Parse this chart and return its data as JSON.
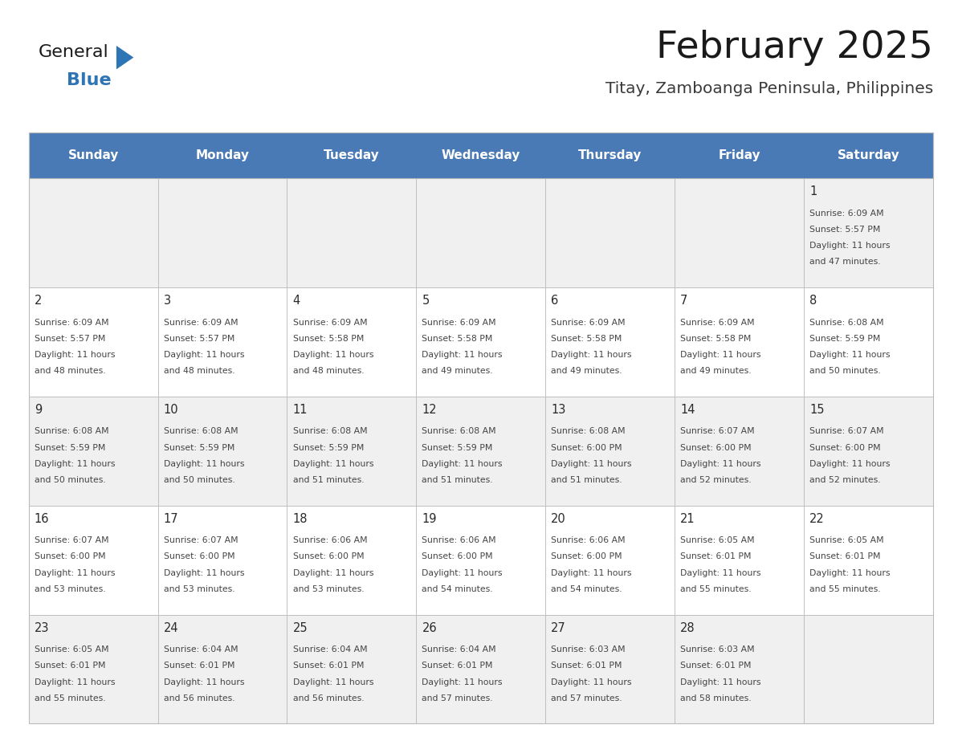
{
  "title": "February 2025",
  "subtitle": "Titay, Zamboanga Peninsula, Philippines",
  "header_bg_color": "#4a7ab5",
  "header_text_color": "#ffffff",
  "cell_bg_color_light": "#f0f0f0",
  "cell_bg_color_white": "#ffffff",
  "day_headers": [
    "Sunday",
    "Monday",
    "Tuesday",
    "Wednesday",
    "Thursday",
    "Friday",
    "Saturday"
  ],
  "days": [
    {
      "day": 1,
      "col": 6,
      "row": 0,
      "sunrise": "6:09 AM",
      "sunset": "5:57 PM",
      "daylight_h": "11 hours",
      "daylight_m": "47 minutes."
    },
    {
      "day": 2,
      "col": 0,
      "row": 1,
      "sunrise": "6:09 AM",
      "sunset": "5:57 PM",
      "daylight_h": "11 hours",
      "daylight_m": "48 minutes."
    },
    {
      "day": 3,
      "col": 1,
      "row": 1,
      "sunrise": "6:09 AM",
      "sunset": "5:57 PM",
      "daylight_h": "11 hours",
      "daylight_m": "48 minutes."
    },
    {
      "day": 4,
      "col": 2,
      "row": 1,
      "sunrise": "6:09 AM",
      "sunset": "5:58 PM",
      "daylight_h": "11 hours",
      "daylight_m": "48 minutes."
    },
    {
      "day": 5,
      "col": 3,
      "row": 1,
      "sunrise": "6:09 AM",
      "sunset": "5:58 PM",
      "daylight_h": "11 hours",
      "daylight_m": "49 minutes."
    },
    {
      "day": 6,
      "col": 4,
      "row": 1,
      "sunrise": "6:09 AM",
      "sunset": "5:58 PM",
      "daylight_h": "11 hours",
      "daylight_m": "49 minutes."
    },
    {
      "day": 7,
      "col": 5,
      "row": 1,
      "sunrise": "6:09 AM",
      "sunset": "5:58 PM",
      "daylight_h": "11 hours",
      "daylight_m": "49 minutes."
    },
    {
      "day": 8,
      "col": 6,
      "row": 1,
      "sunrise": "6:08 AM",
      "sunset": "5:59 PM",
      "daylight_h": "11 hours",
      "daylight_m": "50 minutes."
    },
    {
      "day": 9,
      "col": 0,
      "row": 2,
      "sunrise": "6:08 AM",
      "sunset": "5:59 PM",
      "daylight_h": "11 hours",
      "daylight_m": "50 minutes."
    },
    {
      "day": 10,
      "col": 1,
      "row": 2,
      "sunrise": "6:08 AM",
      "sunset": "5:59 PM",
      "daylight_h": "11 hours",
      "daylight_m": "50 minutes."
    },
    {
      "day": 11,
      "col": 2,
      "row": 2,
      "sunrise": "6:08 AM",
      "sunset": "5:59 PM",
      "daylight_h": "11 hours",
      "daylight_m": "51 minutes."
    },
    {
      "day": 12,
      "col": 3,
      "row": 2,
      "sunrise": "6:08 AM",
      "sunset": "5:59 PM",
      "daylight_h": "11 hours",
      "daylight_m": "51 minutes."
    },
    {
      "day": 13,
      "col": 4,
      "row": 2,
      "sunrise": "6:08 AM",
      "sunset": "6:00 PM",
      "daylight_h": "11 hours",
      "daylight_m": "51 minutes."
    },
    {
      "day": 14,
      "col": 5,
      "row": 2,
      "sunrise": "6:07 AM",
      "sunset": "6:00 PM",
      "daylight_h": "11 hours",
      "daylight_m": "52 minutes."
    },
    {
      "day": 15,
      "col": 6,
      "row": 2,
      "sunrise": "6:07 AM",
      "sunset": "6:00 PM",
      "daylight_h": "11 hours",
      "daylight_m": "52 minutes."
    },
    {
      "day": 16,
      "col": 0,
      "row": 3,
      "sunrise": "6:07 AM",
      "sunset": "6:00 PM",
      "daylight_h": "11 hours",
      "daylight_m": "53 minutes."
    },
    {
      "day": 17,
      "col": 1,
      "row": 3,
      "sunrise": "6:07 AM",
      "sunset": "6:00 PM",
      "daylight_h": "11 hours",
      "daylight_m": "53 minutes."
    },
    {
      "day": 18,
      "col": 2,
      "row": 3,
      "sunrise": "6:06 AM",
      "sunset": "6:00 PM",
      "daylight_h": "11 hours",
      "daylight_m": "53 minutes."
    },
    {
      "day": 19,
      "col": 3,
      "row": 3,
      "sunrise": "6:06 AM",
      "sunset": "6:00 PM",
      "daylight_h": "11 hours",
      "daylight_m": "54 minutes."
    },
    {
      "day": 20,
      "col": 4,
      "row": 3,
      "sunrise": "6:06 AM",
      "sunset": "6:00 PM",
      "daylight_h": "11 hours",
      "daylight_m": "54 minutes."
    },
    {
      "day": 21,
      "col": 5,
      "row": 3,
      "sunrise": "6:05 AM",
      "sunset": "6:01 PM",
      "daylight_h": "11 hours",
      "daylight_m": "55 minutes."
    },
    {
      "day": 22,
      "col": 6,
      "row": 3,
      "sunrise": "6:05 AM",
      "sunset": "6:01 PM",
      "daylight_h": "11 hours",
      "daylight_m": "55 minutes."
    },
    {
      "day": 23,
      "col": 0,
      "row": 4,
      "sunrise": "6:05 AM",
      "sunset": "6:01 PM",
      "daylight_h": "11 hours",
      "daylight_m": "55 minutes."
    },
    {
      "day": 24,
      "col": 1,
      "row": 4,
      "sunrise": "6:04 AM",
      "sunset": "6:01 PM",
      "daylight_h": "11 hours",
      "daylight_m": "56 minutes."
    },
    {
      "day": 25,
      "col": 2,
      "row": 4,
      "sunrise": "6:04 AM",
      "sunset": "6:01 PM",
      "daylight_h": "11 hours",
      "daylight_m": "56 minutes."
    },
    {
      "day": 26,
      "col": 3,
      "row": 4,
      "sunrise": "6:04 AM",
      "sunset": "6:01 PM",
      "daylight_h": "11 hours",
      "daylight_m": "57 minutes."
    },
    {
      "day": 27,
      "col": 4,
      "row": 4,
      "sunrise": "6:03 AM",
      "sunset": "6:01 PM",
      "daylight_h": "11 hours",
      "daylight_m": "57 minutes."
    },
    {
      "day": 28,
      "col": 5,
      "row": 4,
      "sunrise": "6:03 AM",
      "sunset": "6:01 PM",
      "daylight_h": "11 hours",
      "daylight_m": "58 minutes."
    }
  ],
  "num_rows": 5,
  "num_cols": 7,
  "logo_triangle_color": "#2e75b6",
  "title_color": "#1a1a1a",
  "subtitle_color": "#3a3a3a",
  "day_num_color": "#2a2a2a",
  "cell_text_color": "#444444",
  "grid_line_color": "#bbbbbb"
}
